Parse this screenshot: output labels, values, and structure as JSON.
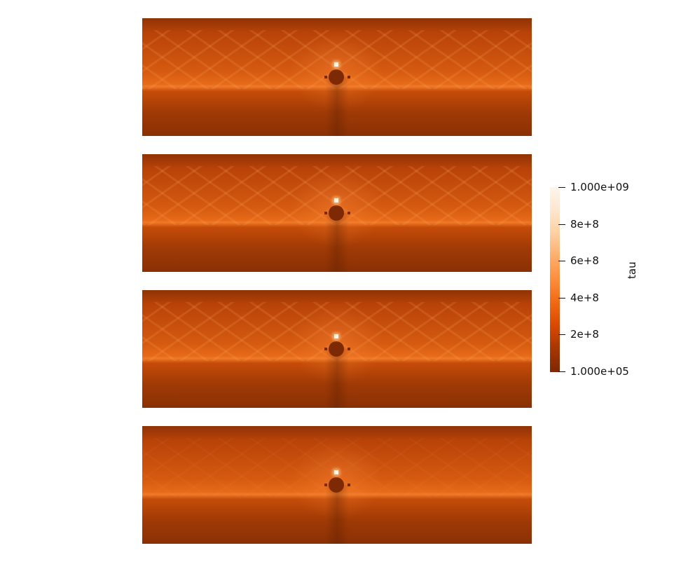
{
  "colorbar": {
    "title": "tau",
    "colors": [
      "#7f2704",
      "#a63603",
      "#d94801",
      "#f16913",
      "#fd8d3c",
      "#fdae6b",
      "#fdd0a2",
      "#fee6ce",
      "#fff5eb"
    ],
    "ticks": [
      {
        "label": "1.000e+09",
        "value": 1000000000
      },
      {
        "label": "8e+8",
        "value": 800000000
      },
      {
        "label": "6e+8",
        "value": 600000000
      },
      {
        "label": "4e+8",
        "value": 400000000
      },
      {
        "label": "2e+8",
        "value": 200000000
      },
      {
        "label": "1.000e+05",
        "value": 100000
      }
    ],
    "range": [
      100000,
      1000000000
    ]
  },
  "panels": [
    {
      "name": "panel-1",
      "style": "streaked"
    },
    {
      "name": "panel-2",
      "style": "streaked"
    },
    {
      "name": "panel-3",
      "style": "streaked"
    },
    {
      "name": "panel-4",
      "style": "smooth"
    }
  ]
}
